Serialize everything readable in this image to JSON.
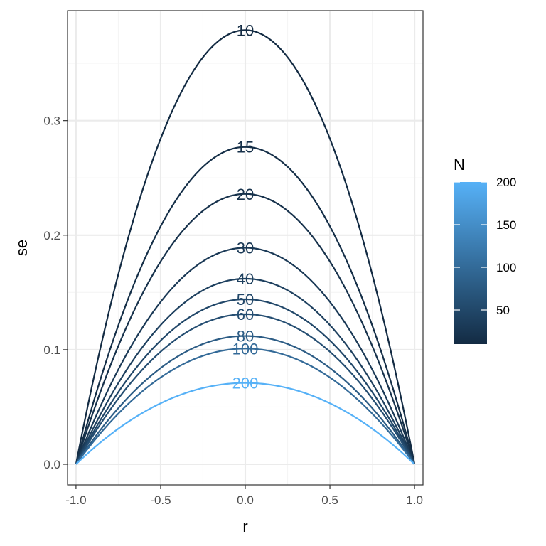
{
  "chart_data": {
    "type": "line",
    "title": "",
    "xlabel": "r",
    "ylabel": "se",
    "xlim": [
      -1.05,
      1.05
    ],
    "ylim": [
      -0.018,
      0.396
    ],
    "x_ticks": [
      -1.0,
      -0.5,
      0.0,
      0.5,
      1.0
    ],
    "x_tick_labels": [
      "-1.0",
      "-0.5",
      "0.0",
      "0.5",
      "1.0"
    ],
    "y_ticks": [
      0.0,
      0.1,
      0.2,
      0.3
    ],
    "y_tick_labels": [
      "0.0",
      "0.1",
      "0.2",
      "0.3"
    ],
    "grid": true,
    "x": [
      -1.0,
      -0.9,
      -0.8,
      -0.7,
      -0.6,
      -0.5,
      -0.4,
      -0.3,
      -0.2,
      -0.1,
      0.0,
      0.1,
      0.2,
      0.3,
      0.4,
      0.5,
      0.6,
      0.7,
      0.8,
      0.9,
      1.0
    ],
    "series": [
      {
        "name": "10",
        "N": 10,
        "values": [
          0.0,
          0.072,
          0.136,
          0.192,
          0.241,
          0.283,
          0.318,
          0.345,
          0.364,
          0.375,
          0.379,
          0.375,
          0.364,
          0.345,
          0.318,
          0.283,
          0.241,
          0.192,
          0.136,
          0.072,
          0.0
        ]
      },
      {
        "name": "15",
        "N": 15,
        "values": [
          0.0,
          0.053,
          0.1,
          0.141,
          0.177,
          0.208,
          0.233,
          0.252,
          0.267,
          0.275,
          0.277,
          0.275,
          0.267,
          0.252,
          0.233,
          0.208,
          0.177,
          0.141,
          0.1,
          0.053,
          0.0
        ]
      },
      {
        "name": "20",
        "N": 20,
        "values": [
          0.0,
          0.045,
          0.085,
          0.12,
          0.151,
          0.177,
          0.198,
          0.214,
          0.226,
          0.234,
          0.236,
          0.234,
          0.226,
          0.214,
          0.198,
          0.177,
          0.151,
          0.12,
          0.085,
          0.045,
          0.0
        ]
      },
      {
        "name": "30",
        "N": 30,
        "values": [
          0.0,
          0.036,
          0.068,
          0.096,
          0.121,
          0.142,
          0.159,
          0.172,
          0.181,
          0.187,
          0.189,
          0.187,
          0.181,
          0.172,
          0.159,
          0.142,
          0.121,
          0.096,
          0.068,
          0.036,
          0.0
        ]
      },
      {
        "name": "40",
        "N": 40,
        "values": [
          0.0,
          0.031,
          0.058,
          0.082,
          0.103,
          0.121,
          0.136,
          0.147,
          0.155,
          0.16,
          0.162,
          0.16,
          0.155,
          0.147,
          0.136,
          0.121,
          0.103,
          0.082,
          0.058,
          0.031,
          0.0
        ]
      },
      {
        "name": "50",
        "N": 50,
        "values": [
          0.0,
          0.027,
          0.052,
          0.073,
          0.092,
          0.108,
          0.121,
          0.131,
          0.139,
          0.143,
          0.144,
          0.143,
          0.139,
          0.131,
          0.121,
          0.108,
          0.092,
          0.073,
          0.052,
          0.027,
          0.0
        ]
      },
      {
        "name": "60",
        "N": 60,
        "values": [
          0.0,
          0.025,
          0.047,
          0.067,
          0.084,
          0.099,
          0.111,
          0.12,
          0.126,
          0.13,
          0.131,
          0.13,
          0.126,
          0.12,
          0.111,
          0.099,
          0.084,
          0.067,
          0.047,
          0.025,
          0.0
        ]
      },
      {
        "name": "80",
        "N": 80,
        "values": [
          0.0,
          0.021,
          0.04,
          0.057,
          0.072,
          0.084,
          0.094,
          0.102,
          0.108,
          0.111,
          0.112,
          0.111,
          0.108,
          0.102,
          0.094,
          0.084,
          0.072,
          0.057,
          0.04,
          0.021,
          0.0
        ]
      },
      {
        "name": "100",
        "N": 100,
        "values": [
          0.0,
          0.019,
          0.036,
          0.052,
          0.065,
          0.076,
          0.085,
          0.092,
          0.097,
          0.1,
          0.101,
          0.1,
          0.097,
          0.092,
          0.085,
          0.076,
          0.065,
          0.052,
          0.036,
          0.019,
          0.0
        ]
      },
      {
        "name": "200",
        "N": 200,
        "values": [
          0.0,
          0.014,
          0.026,
          0.036,
          0.046,
          0.053,
          0.06,
          0.065,
          0.069,
          0.071,
          0.071,
          0.071,
          0.069,
          0.065,
          0.06,
          0.053,
          0.046,
          0.036,
          0.026,
          0.014,
          0.0
        ]
      }
    ],
    "legend": {
      "title": "N",
      "type": "colorbar",
      "range": [
        10,
        200
      ],
      "breaks": [
        50,
        100,
        150,
        200
      ],
      "break_labels": [
        "50",
        "100",
        "150",
        "200"
      ],
      "low_color": "#132B43",
      "high_color": "#56B1F7",
      "placement": "right"
    },
    "colors": {
      "panel_border": "#333333",
      "grid_major": "#EBEBEB",
      "grid_minor": "#F5F5F5"
    }
  }
}
